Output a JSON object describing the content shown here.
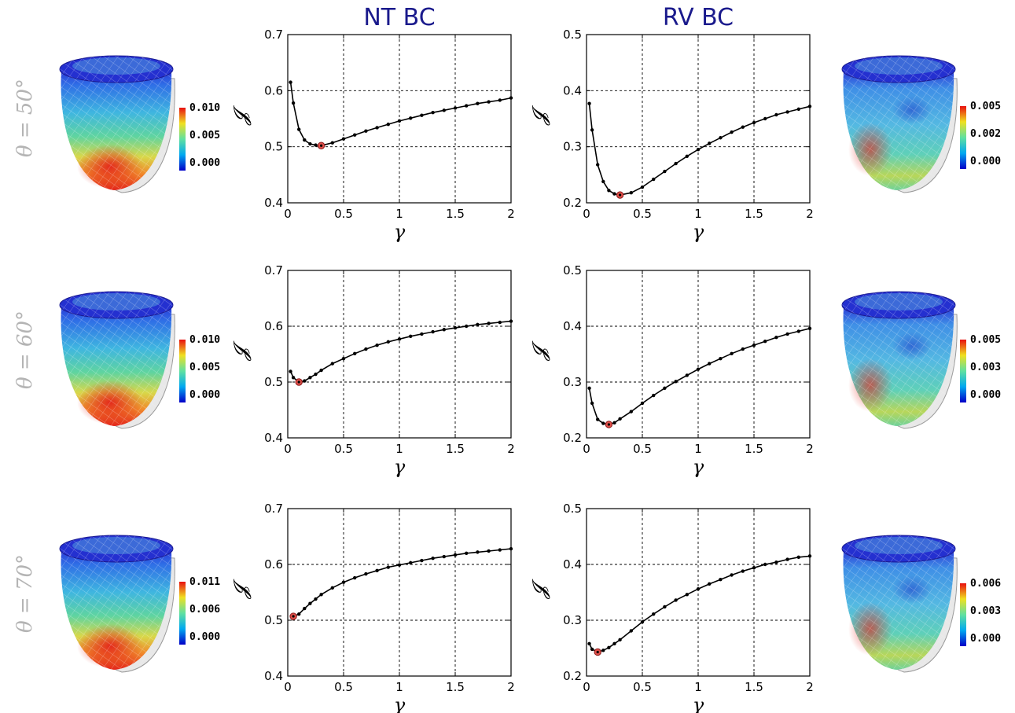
{
  "columns": [
    "NT BC",
    "RV BC"
  ],
  "rows": [
    {
      "label": "θ = 50°",
      "nt_colorbar": [
        "0.010",
        "0.005",
        "0.000"
      ],
      "rv_colorbar": [
        "0.005",
        "0.002",
        "0.000"
      ]
    },
    {
      "label": "θ = 60°",
      "nt_colorbar": [
        "0.010",
        "0.005",
        "0.000"
      ],
      "rv_colorbar": [
        "0.005",
        "0.003",
        "0.000"
      ]
    },
    {
      "label": "θ = 70°",
      "nt_colorbar": [
        "0.011",
        "0.006",
        "0.000"
      ],
      "rv_colorbar": [
        "0.006",
        "0.003",
        "0.000"
      ]
    }
  ],
  "colors": {
    "curve": "#000000",
    "minimum_marker": "#e0504a",
    "title": "#1a1a8c",
    "row_label": "#b4b4b4"
  },
  "chart_data": [
    {
      "type": "line",
      "id": "nt-50",
      "xlabel": "γ",
      "ylabel": "𝓙",
      "xlim": [
        0,
        2
      ],
      "ylim": [
        0.4,
        0.7
      ],
      "xticks": [
        0,
        0.5,
        1,
        1.5,
        2
      ],
      "xtick_labels": [
        "0",
        "0.5",
        "1",
        "1.5",
        "2"
      ],
      "yticks": [
        0.4,
        0.5,
        0.6,
        0.7
      ],
      "ytick_labels": [
        "0.4",
        "0.5",
        "0.6",
        "0.7"
      ],
      "grid": true,
      "x": [
        0.025,
        0.05,
        0.1,
        0.15,
        0.2,
        0.25,
        0.3,
        0.4,
        0.5,
        0.6,
        0.7,
        0.8,
        0.9,
        1.0,
        1.1,
        1.2,
        1.3,
        1.4,
        1.5,
        1.6,
        1.7,
        1.8,
        1.9,
        2.0
      ],
      "y": [
        0.615,
        0.578,
        0.531,
        0.512,
        0.505,
        0.503,
        0.502,
        0.507,
        0.514,
        0.521,
        0.528,
        0.534,
        0.54,
        0.546,
        0.551,
        0.556,
        0.561,
        0.565,
        0.569,
        0.573,
        0.577,
        0.58,
        0.583,
        0.587
      ],
      "minimum": {
        "x": 0.3,
        "y": 0.502
      }
    },
    {
      "type": "line",
      "id": "rv-50",
      "xlabel": "γ",
      "ylabel": "𝓙",
      "xlim": [
        0,
        2
      ],
      "ylim": [
        0.2,
        0.5
      ],
      "xticks": [
        0,
        0.5,
        1,
        1.5,
        2
      ],
      "xtick_labels": [
        "0",
        "0.5",
        "1",
        "1.5",
        "2"
      ],
      "yticks": [
        0.2,
        0.3,
        0.4,
        0.5
      ],
      "ytick_labels": [
        "0.2",
        "0.3",
        "0.4",
        "0.5"
      ],
      "grid": true,
      "x": [
        0.025,
        0.05,
        0.1,
        0.15,
        0.2,
        0.25,
        0.3,
        0.4,
        0.5,
        0.6,
        0.7,
        0.8,
        0.9,
        1.0,
        1.1,
        1.2,
        1.3,
        1.4,
        1.5,
        1.6,
        1.7,
        1.8,
        1.9,
        2.0
      ],
      "y": [
        0.377,
        0.33,
        0.268,
        0.238,
        0.222,
        0.216,
        0.214,
        0.218,
        0.228,
        0.242,
        0.256,
        0.27,
        0.283,
        0.295,
        0.306,
        0.316,
        0.326,
        0.335,
        0.343,
        0.35,
        0.357,
        0.362,
        0.367,
        0.372
      ],
      "minimum": {
        "x": 0.3,
        "y": 0.214
      }
    },
    {
      "type": "line",
      "id": "nt-60",
      "xlabel": "γ",
      "ylabel": "𝓙",
      "xlim": [
        0,
        2
      ],
      "ylim": [
        0.4,
        0.7
      ],
      "xticks": [
        0,
        0.5,
        1,
        1.5,
        2
      ],
      "xtick_labels": [
        "0",
        "0.5",
        "1",
        "1.5",
        "2"
      ],
      "yticks": [
        0.4,
        0.5,
        0.6,
        0.7
      ],
      "ytick_labels": [
        "0.4",
        "0.5",
        "0.6",
        "0.7"
      ],
      "grid": true,
      "x": [
        0.025,
        0.05,
        0.1,
        0.15,
        0.2,
        0.25,
        0.3,
        0.4,
        0.5,
        0.6,
        0.7,
        0.8,
        0.9,
        1.0,
        1.1,
        1.2,
        1.3,
        1.4,
        1.5,
        1.6,
        1.7,
        1.8,
        1.9,
        2.0
      ],
      "y": [
        0.519,
        0.508,
        0.5,
        0.502,
        0.508,
        0.514,
        0.521,
        0.533,
        0.542,
        0.551,
        0.559,
        0.566,
        0.572,
        0.577,
        0.582,
        0.586,
        0.59,
        0.594,
        0.597,
        0.6,
        0.603,
        0.605,
        0.607,
        0.609
      ],
      "minimum": {
        "x": 0.1,
        "y": 0.5
      }
    },
    {
      "type": "line",
      "id": "rv-60",
      "xlabel": "γ",
      "ylabel": "𝓙",
      "xlim": [
        0,
        2
      ],
      "ylim": [
        0.2,
        0.5
      ],
      "xticks": [
        0,
        0.5,
        1,
        1.5,
        2
      ],
      "xtick_labels": [
        "0",
        "0.5",
        "1",
        "1.5",
        "2"
      ],
      "yticks": [
        0.2,
        0.3,
        0.4,
        0.5
      ],
      "ytick_labels": [
        "0.2",
        "0.3",
        "0.4",
        "0.5"
      ],
      "grid": true,
      "x": [
        0.025,
        0.05,
        0.1,
        0.15,
        0.2,
        0.25,
        0.3,
        0.4,
        0.5,
        0.6,
        0.7,
        0.8,
        0.9,
        1.0,
        1.1,
        1.2,
        1.3,
        1.4,
        1.5,
        1.6,
        1.7,
        1.8,
        1.9,
        2.0
      ],
      "y": [
        0.289,
        0.262,
        0.233,
        0.226,
        0.224,
        0.227,
        0.234,
        0.247,
        0.262,
        0.276,
        0.289,
        0.301,
        0.312,
        0.323,
        0.333,
        0.342,
        0.351,
        0.359,
        0.366,
        0.373,
        0.38,
        0.386,
        0.391,
        0.396
      ],
      "minimum": {
        "x": 0.2,
        "y": 0.224
      }
    },
    {
      "type": "line",
      "id": "nt-70",
      "xlabel": "γ",
      "ylabel": "𝓙",
      "xlim": [
        0,
        2
      ],
      "ylim": [
        0.4,
        0.7
      ],
      "xticks": [
        0,
        0.5,
        1,
        1.5,
        2
      ],
      "xtick_labels": [
        "0",
        "0.5",
        "1",
        "1.5",
        "2"
      ],
      "yticks": [
        0.4,
        0.5,
        0.6,
        0.7
      ],
      "ytick_labels": [
        "0.4",
        "0.5",
        "0.6",
        "0.7"
      ],
      "grid": true,
      "x": [
        0.05,
        0.1,
        0.15,
        0.2,
        0.25,
        0.3,
        0.4,
        0.5,
        0.6,
        0.7,
        0.8,
        0.9,
        1.0,
        1.1,
        1.2,
        1.3,
        1.4,
        1.5,
        1.6,
        1.7,
        1.8,
        1.9,
        2.0
      ],
      "y": [
        0.507,
        0.511,
        0.521,
        0.53,
        0.538,
        0.546,
        0.558,
        0.568,
        0.576,
        0.583,
        0.589,
        0.595,
        0.599,
        0.603,
        0.607,
        0.611,
        0.614,
        0.617,
        0.62,
        0.622,
        0.624,
        0.626,
        0.628
      ],
      "minimum": {
        "x": 0.05,
        "y": 0.507
      }
    },
    {
      "type": "line",
      "id": "rv-70",
      "xlabel": "γ",
      "ylabel": "𝓙",
      "xlim": [
        0,
        2
      ],
      "ylim": [
        0.2,
        0.5
      ],
      "xticks": [
        0,
        0.5,
        1,
        1.5,
        2
      ],
      "xtick_labels": [
        "0",
        "0.5",
        "1",
        "1.5",
        "2"
      ],
      "yticks": [
        0.2,
        0.3,
        0.4,
        0.5
      ],
      "ytick_labels": [
        "0.2",
        "0.3",
        "0.4",
        "0.5"
      ],
      "grid": true,
      "x": [
        0.025,
        0.05,
        0.1,
        0.15,
        0.2,
        0.25,
        0.3,
        0.4,
        0.5,
        0.6,
        0.7,
        0.8,
        0.9,
        1.0,
        1.1,
        1.2,
        1.3,
        1.4,
        1.5,
        1.6,
        1.7,
        1.8,
        1.9,
        2.0
      ],
      "y": [
        0.258,
        0.248,
        0.243,
        0.246,
        0.251,
        0.258,
        0.265,
        0.281,
        0.297,
        0.311,
        0.324,
        0.336,
        0.346,
        0.356,
        0.365,
        0.373,
        0.381,
        0.388,
        0.394,
        0.4,
        0.404,
        0.409,
        0.413,
        0.415
      ],
      "minimum": {
        "x": 0.1,
        "y": 0.243
      }
    }
  ]
}
